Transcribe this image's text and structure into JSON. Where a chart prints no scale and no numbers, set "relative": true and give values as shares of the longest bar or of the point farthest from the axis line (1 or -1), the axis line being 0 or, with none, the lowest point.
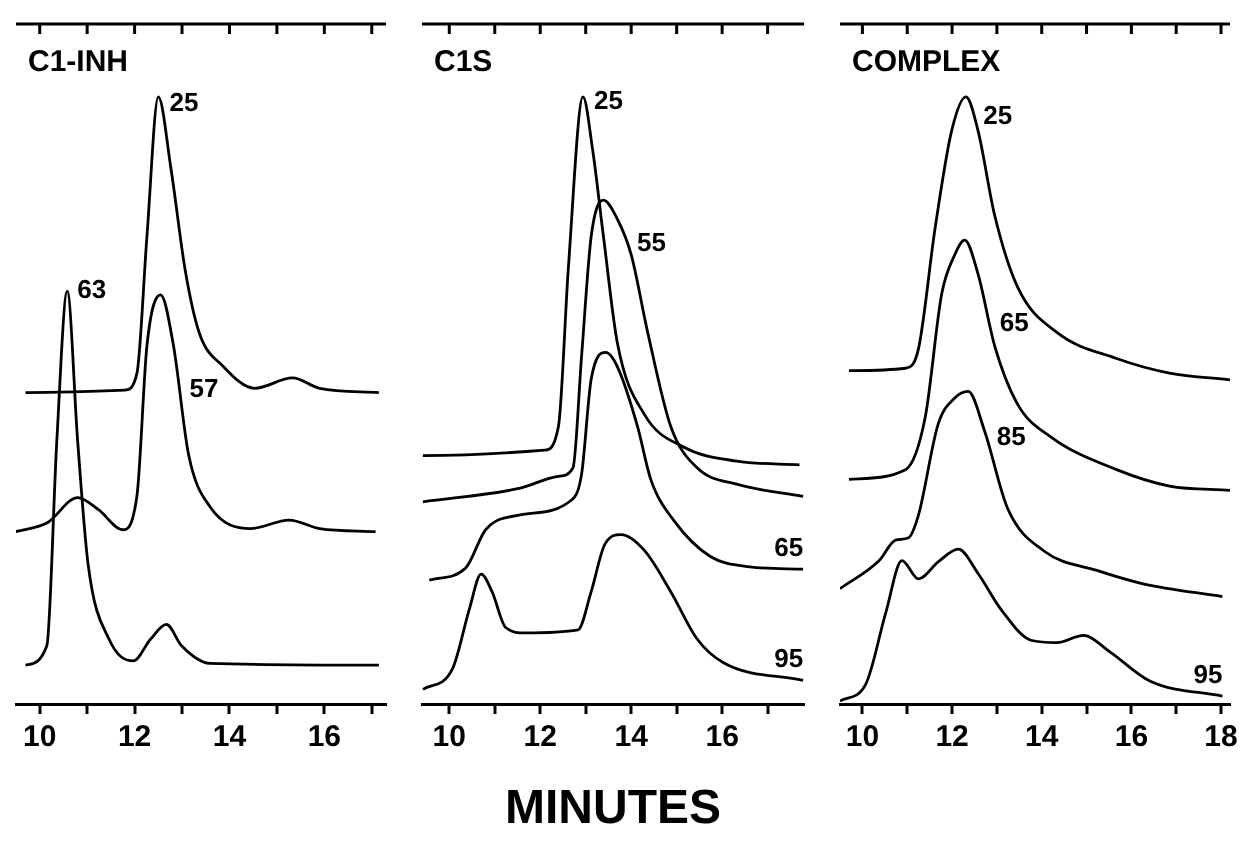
{
  "chart_data": [
    {
      "type": "line",
      "title": "C1-INH",
      "relative": true,
      "marker": "none",
      "line_style": "solid",
      "xlim": [
        9.5,
        17.3
      ],
      "xticks": [
        10,
        {
          "value": 11,
          "label": null
        },
        12,
        {
          "value": 13,
          "label": null
        },
        14,
        {
          "value": 15,
          "label": null
        },
        16,
        {
          "value": 17,
          "label": null
        }
      ],
      "series": [
        {
          "name": "25",
          "color": "#000000",
          "x": [
            9.7,
            11.8,
            12.05,
            12.26,
            12.5,
            12.77,
            13.07,
            13.36,
            13.87,
            14.53,
            15.33,
            15.9,
            17.15
          ],
          "values": [
            0.513,
            0.517,
            0.545,
            0.77,
            1.0,
            0.88,
            0.713,
            0.612,
            0.556,
            0.52,
            0.537,
            0.52,
            0.513
          ]
        },
        {
          "name": "57",
          "color": "#000000",
          "x": [
            9.5,
            10.15,
            10.8,
            11.24,
            11.75,
            12.05,
            12.26,
            12.55,
            12.82,
            13.14,
            13.58,
            14.45,
            15.26,
            15.9,
            17.08
          ],
          "values": [
            0.284,
            0.298,
            0.34,
            0.32,
            0.287,
            0.343,
            0.59,
            0.674,
            0.59,
            0.41,
            0.326,
            0.289,
            0.303,
            0.289,
            0.284
          ]
        },
        {
          "name": "63",
          "color": "#000000",
          "x": [
            9.7,
            10.15,
            10.36,
            10.58,
            10.8,
            11.02,
            11.46,
            11.97,
            12.34,
            12.67,
            12.99,
            13.58,
            17.15
          ],
          "values": [
            0.064,
            0.096,
            0.433,
            0.68,
            0.433,
            0.23,
            0.107,
            0.071,
            0.107,
            0.131,
            0.096,
            0.067,
            0.064
          ]
        }
      ],
      "legend": false
    },
    {
      "type": "line",
      "title": "C1S",
      "xlabel": "MINUTES",
      "relative": true,
      "marker": "none",
      "line_style": "solid",
      "xlim": [
        9.4,
        17.8
      ],
      "xticks": [
        10,
        {
          "value": 11,
          "label": null
        },
        12,
        {
          "value": 13,
          "label": null
        },
        14,
        {
          "value": 15,
          "label": null
        },
        16,
        {
          "value": 17,
          "label": null
        }
      ],
      "series": [
        {
          "name": "25",
          "color": "#000000",
          "x": [
            9.42,
            12.1,
            12.4,
            12.62,
            12.94,
            13.15,
            13.39,
            13.7,
            14.29,
            15.16,
            16.32,
            17.7
          ],
          "values": [
            0.409,
            0.418,
            0.457,
            0.72,
            1.0,
            0.914,
            0.77,
            0.593,
            0.477,
            0.423,
            0.4,
            0.394
          ]
        },
        {
          "name": "55",
          "color": "#000000",
          "x": [
            9.42,
            11.53,
            12.4,
            12.72,
            12.91,
            13.12,
            13.39,
            13.7,
            14.0,
            14.36,
            14.87,
            15.45,
            16.32,
            17.78
          ],
          "values": [
            0.333,
            0.355,
            0.375,
            0.389,
            0.574,
            0.77,
            0.83,
            0.798,
            0.74,
            0.613,
            0.457,
            0.389,
            0.362,
            0.342
          ]
        },
        {
          "name": "65",
          "color": "#000000",
          "x": [
            9.56,
            10.36,
            10.8,
            11.53,
            12.69,
            12.91,
            13.12,
            13.44,
            13.7,
            14.14,
            14.43,
            14.94,
            15.74,
            16.61,
            17.78
          ],
          "values": [
            0.204,
            0.224,
            0.287,
            0.311,
            0.336,
            0.379,
            0.535,
            0.579,
            0.555,
            0.457,
            0.37,
            0.302,
            0.243,
            0.226,
            0.222
          ]
        },
        {
          "name": "95",
          "color": "#000000",
          "x": [
            9.42,
            10.07,
            10.44,
            10.7,
            10.94,
            11.24,
            11.67,
            12.83,
            13.12,
            13.42,
            13.78,
            14.29,
            14.87,
            15.45,
            16.03,
            17.78
          ],
          "values": [
            0.024,
            0.058,
            0.156,
            0.214,
            0.185,
            0.126,
            0.117,
            0.122,
            0.185,
            0.263,
            0.279,
            0.253,
            0.185,
            0.107,
            0.068,
            0.039
          ]
        }
      ],
      "legend": false
    },
    {
      "type": "line",
      "title": "COMPLEX",
      "relative": true,
      "marker": "none",
      "line_style": "solid",
      "xlim": [
        9.5,
        18.2
      ],
      "xticks": [
        10,
        {
          "value": 11,
          "label": null
        },
        12,
        {
          "value": 13,
          "label": null
        },
        14,
        {
          "value": 15,
          "label": null
        },
        16,
        {
          "value": 17,
          "label": null
        },
        18
      ],
      "series": [
        {
          "name": "25",
          "color": "#000000",
          "x": [
            9.7,
            10.96,
            11.25,
            11.62,
            11.99,
            12.31,
            12.58,
            12.95,
            13.46,
            14.34,
            15.67,
            16.85,
            18.2
          ],
          "values": [
            0.549,
            0.553,
            0.585,
            0.783,
            0.944,
            1.0,
            0.944,
            0.805,
            0.687,
            0.612,
            0.569,
            0.545,
            0.534
          ]
        },
        {
          "name": "65",
          "color": "#000000",
          "x": [
            9.7,
            10.96,
            11.4,
            11.77,
            12.06,
            12.28,
            12.58,
            12.95,
            13.46,
            14.2,
            15.67,
            16.85,
            18.2
          ],
          "values": [
            0.37,
            0.386,
            0.472,
            0.676,
            0.74,
            0.764,
            0.708,
            0.59,
            0.494,
            0.44,
            0.386,
            0.359,
            0.352
          ]
        },
        {
          "name": "85",
          "color": "#000000",
          "x": [
            9.5,
            10.37,
            10.74,
            11.03,
            11.25,
            11.69,
            12.06,
            12.36,
            12.72,
            13.24,
            14.05,
            15.23,
            16.26,
            18.03
          ],
          "values": [
            0.19,
            0.236,
            0.27,
            0.274,
            0.311,
            0.461,
            0.504,
            0.515,
            0.451,
            0.322,
            0.252,
            0.22,
            0.198,
            0.177
          ]
        },
        {
          "name": "95",
          "color": "#000000",
          "x": [
            9.5,
            10.07,
            10.52,
            10.88,
            11.25,
            11.69,
            12.14,
            12.58,
            13.09,
            13.76,
            14.34,
            14.93,
            15.52,
            16.41,
            18.03
          ],
          "values": [
            0.005,
            0.032,
            0.15,
            0.236,
            0.206,
            0.234,
            0.255,
            0.215,
            0.156,
            0.105,
            0.101,
            0.113,
            0.086,
            0.038,
            0.013
          ]
        }
      ],
      "legend": false
    }
  ]
}
